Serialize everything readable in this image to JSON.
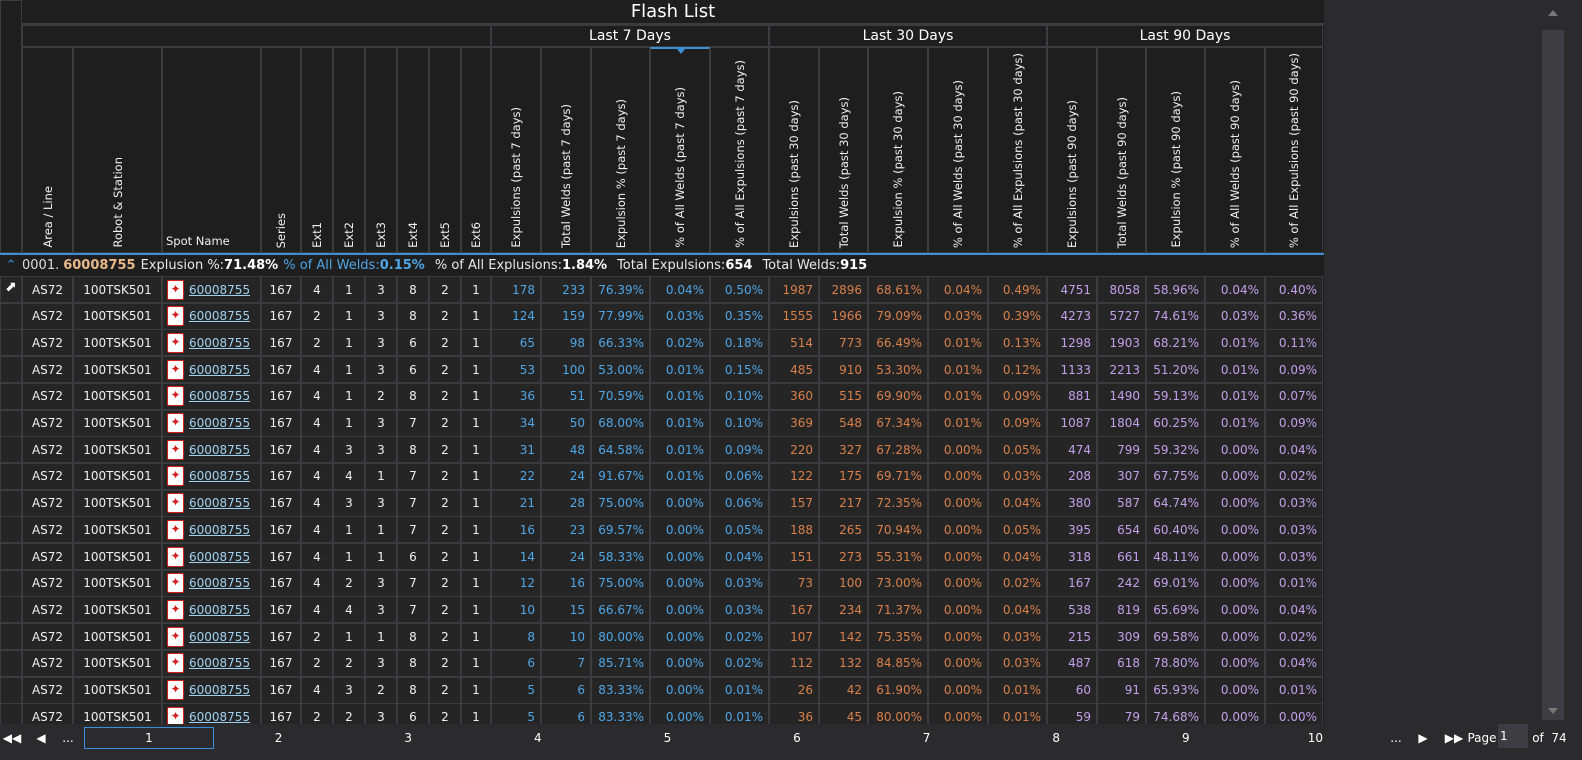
{
  "title": "Flash List",
  "groups": [
    "Last 7 Days",
    "Last 30 Days",
    "Last 90 Days"
  ],
  "columns": [
    "Area / Line",
    "Robot & Station",
    "Spot Name",
    "Series",
    "Ext1",
    "Ext2",
    "Ext3",
    "Ext4",
    "Ext5",
    "Ext6",
    "Expulsions (past 7 days)",
    "Total Welds (past 7 days)",
    "Expulsion % (past 7 days)",
    "% of All Welds (past 7 days)",
    "% of All Expulsions (past 7 days)",
    "Expulsions (past 30 days)",
    "Total Welds (past 30 days)",
    "Expulsion % (past 30 days)",
    "% of All Welds (past 30 days)",
    "% of All Expulsions (past 30 days)",
    "Expulsions (past 90 days)",
    "Total Welds (past 90 days)",
    "Expulsion % (past 90 days)",
    "% of All Welds (past 90 days)",
    "% of All Expulsions (past 90 days)"
  ],
  "sorted_column": "% of All Welds (past 7 days)",
  "group_row": {
    "index": "0001.",
    "spot": "60008755",
    "exp_pct_label": "Explusion %:",
    "exp_pct": "71.48%",
    "all_welds_label": "% of All Welds:",
    "all_welds": "0.15%",
    "all_exp_label": "% of All Explusions:",
    "all_exp": "1.84%",
    "total_exp_label": "Total Expulsions:",
    "total_exp": "654",
    "total_welds_label": "Total Welds:",
    "total_welds": "915"
  },
  "colors": {
    "last7": "#4ea6e6",
    "last30": "#d9804a",
    "last90": "#c2a0e8",
    "accent": "#3b8fd6"
  },
  "rows": [
    [
      "AS72",
      "100TSK501",
      "60008755",
      "167",
      "4",
      "1",
      "3",
      "8",
      "2",
      "1",
      "178",
      "233",
      "76.39%",
      "0.04%",
      "0.50%",
      "1987",
      "2896",
      "68.61%",
      "0.04%",
      "0.49%",
      "4751",
      "8058",
      "58.96%",
      "0.04%",
      "0.40%"
    ],
    [
      "AS72",
      "100TSK501",
      "60008755",
      "167",
      "2",
      "1",
      "3",
      "8",
      "2",
      "1",
      "124",
      "159",
      "77.99%",
      "0.03%",
      "0.35%",
      "1555",
      "1966",
      "79.09%",
      "0.03%",
      "0.39%",
      "4273",
      "5727",
      "74.61%",
      "0.03%",
      "0.36%"
    ],
    [
      "AS72",
      "100TSK501",
      "60008755",
      "167",
      "2",
      "1",
      "3",
      "6",
      "2",
      "1",
      "65",
      "98",
      "66.33%",
      "0.02%",
      "0.18%",
      "514",
      "773",
      "66.49%",
      "0.01%",
      "0.13%",
      "1298",
      "1903",
      "68.21%",
      "0.01%",
      "0.11%"
    ],
    [
      "AS72",
      "100TSK501",
      "60008755",
      "167",
      "4",
      "1",
      "3",
      "6",
      "2",
      "1",
      "53",
      "100",
      "53.00%",
      "0.01%",
      "0.15%",
      "485",
      "910",
      "53.30%",
      "0.01%",
      "0.12%",
      "1133",
      "2213",
      "51.20%",
      "0.01%",
      "0.09%"
    ],
    [
      "AS72",
      "100TSK501",
      "60008755",
      "167",
      "4",
      "1",
      "2",
      "8",
      "2",
      "1",
      "36",
      "51",
      "70.59%",
      "0.01%",
      "0.10%",
      "360",
      "515",
      "69.90%",
      "0.01%",
      "0.09%",
      "881",
      "1490",
      "59.13%",
      "0.01%",
      "0.07%"
    ],
    [
      "AS72",
      "100TSK501",
      "60008755",
      "167",
      "4",
      "1",
      "3",
      "7",
      "2",
      "1",
      "34",
      "50",
      "68.00%",
      "0.01%",
      "0.10%",
      "369",
      "548",
      "67.34%",
      "0.01%",
      "0.09%",
      "1087",
      "1804",
      "60.25%",
      "0.01%",
      "0.09%"
    ],
    [
      "AS72",
      "100TSK501",
      "60008755",
      "167",
      "4",
      "3",
      "3",
      "8",
      "2",
      "1",
      "31",
      "48",
      "64.58%",
      "0.01%",
      "0.09%",
      "220",
      "327",
      "67.28%",
      "0.00%",
      "0.05%",
      "474",
      "799",
      "59.32%",
      "0.00%",
      "0.04%"
    ],
    [
      "AS72",
      "100TSK501",
      "60008755",
      "167",
      "4",
      "4",
      "1",
      "7",
      "2",
      "1",
      "22",
      "24",
      "91.67%",
      "0.01%",
      "0.06%",
      "122",
      "175",
      "69.71%",
      "0.00%",
      "0.03%",
      "208",
      "307",
      "67.75%",
      "0.00%",
      "0.02%"
    ],
    [
      "AS72",
      "100TSK501",
      "60008755",
      "167",
      "4",
      "3",
      "3",
      "7",
      "2",
      "1",
      "21",
      "28",
      "75.00%",
      "0.00%",
      "0.06%",
      "157",
      "217",
      "72.35%",
      "0.00%",
      "0.04%",
      "380",
      "587",
      "64.74%",
      "0.00%",
      "0.03%"
    ],
    [
      "AS72",
      "100TSK501",
      "60008755",
      "167",
      "4",
      "1",
      "1",
      "7",
      "2",
      "1",
      "16",
      "23",
      "69.57%",
      "0.00%",
      "0.05%",
      "188",
      "265",
      "70.94%",
      "0.00%",
      "0.05%",
      "395",
      "654",
      "60.40%",
      "0.00%",
      "0.03%"
    ],
    [
      "AS72",
      "100TSK501",
      "60008755",
      "167",
      "4",
      "1",
      "1",
      "6",
      "2",
      "1",
      "14",
      "24",
      "58.33%",
      "0.00%",
      "0.04%",
      "151",
      "273",
      "55.31%",
      "0.00%",
      "0.04%",
      "318",
      "661",
      "48.11%",
      "0.00%",
      "0.03%"
    ],
    [
      "AS72",
      "100TSK501",
      "60008755",
      "167",
      "4",
      "2",
      "3",
      "7",
      "2",
      "1",
      "12",
      "16",
      "75.00%",
      "0.00%",
      "0.03%",
      "73",
      "100",
      "73.00%",
      "0.00%",
      "0.02%",
      "167",
      "242",
      "69.01%",
      "0.00%",
      "0.01%"
    ],
    [
      "AS72",
      "100TSK501",
      "60008755",
      "167",
      "4",
      "4",
      "3",
      "7",
      "2",
      "1",
      "10",
      "15",
      "66.67%",
      "0.00%",
      "0.03%",
      "167",
      "234",
      "71.37%",
      "0.00%",
      "0.04%",
      "538",
      "819",
      "65.69%",
      "0.00%",
      "0.04%"
    ],
    [
      "AS72",
      "100TSK501",
      "60008755",
      "167",
      "2",
      "1",
      "1",
      "8",
      "2",
      "1",
      "8",
      "10",
      "80.00%",
      "0.00%",
      "0.02%",
      "107",
      "142",
      "75.35%",
      "0.00%",
      "0.03%",
      "215",
      "309",
      "69.58%",
      "0.00%",
      "0.02%"
    ],
    [
      "AS72",
      "100TSK501",
      "60008755",
      "167",
      "2",
      "2",
      "3",
      "8",
      "2",
      "1",
      "6",
      "7",
      "85.71%",
      "0.00%",
      "0.02%",
      "112",
      "132",
      "84.85%",
      "0.00%",
      "0.03%",
      "487",
      "618",
      "78.80%",
      "0.00%",
      "0.04%"
    ],
    [
      "AS72",
      "100TSK501",
      "60008755",
      "167",
      "4",
      "3",
      "2",
      "8",
      "2",
      "1",
      "5",
      "6",
      "83.33%",
      "0.00%",
      "0.01%",
      "26",
      "42",
      "61.90%",
      "0.00%",
      "0.01%",
      "60",
      "91",
      "65.93%",
      "0.00%",
      "0.01%"
    ],
    [
      "AS72",
      "100TSK501",
      "60008755",
      "167",
      "2",
      "2",
      "3",
      "6",
      "2",
      "1",
      "5",
      "6",
      "83.33%",
      "0.00%",
      "0.01%",
      "36",
      "45",
      "80.00%",
      "0.00%",
      "0.01%",
      "59",
      "79",
      "74.68%",
      "0.00%",
      "0.00%"
    ]
  ],
  "pager": {
    "pages": [
      "1",
      "2",
      "3",
      "4",
      "5",
      "6",
      "7",
      "8",
      "9",
      "10"
    ],
    "current": "1",
    "ellipsis": "...",
    "page_label": "Page",
    "page_value": "1",
    "of_label": "of",
    "total_pages": "74"
  }
}
